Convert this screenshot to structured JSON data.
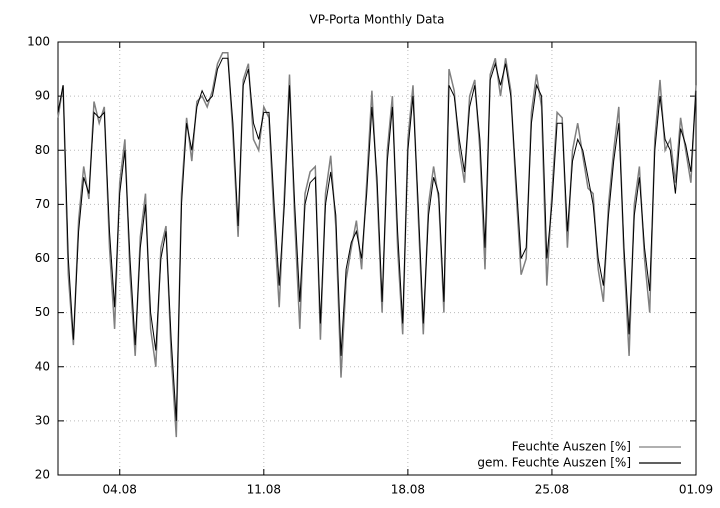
{
  "chart_data": {
    "type": "line",
    "title": "VP-Porta Monthly Data",
    "categories": [
      null,
      null,
      null,
      null,
      null,
      null,
      null,
      null,
      null,
      null,
      null,
      null,
      "04.08",
      null,
      null,
      null,
      null,
      null,
      null,
      null,
      null,
      null,
      null,
      null,
      null,
      null,
      null,
      null,
      null,
      null,
      null,
      null,
      null,
      null,
      null,
      null,
      null,
      null,
      null,
      null,
      "11.08",
      null,
      null,
      null,
      null,
      null,
      null,
      null,
      null,
      null,
      null,
      null,
      null,
      null,
      null,
      null,
      null,
      null,
      null,
      null,
      null,
      null,
      null,
      null,
      null,
      null,
      null,
      null,
      "18.08",
      null,
      null,
      null,
      null,
      null,
      null,
      null,
      null,
      null,
      null,
      null,
      null,
      null,
      null,
      null,
      null,
      null,
      null,
      null,
      null,
      null,
      null,
      null,
      null,
      null,
      null,
      null,
      "25.08",
      null,
      null,
      null,
      null,
      null,
      null,
      null,
      null,
      null,
      null,
      null,
      null,
      null,
      null,
      null,
      null,
      null,
      null,
      null,
      null,
      null,
      null,
      null,
      null,
      null,
      null,
      null,
      "01.09"
    ],
    "series": [
      {
        "name": "Feuchte Auszen [%]",
        "color": "#808080",
        "values": [
          86,
          92,
          57,
          44,
          67,
          77,
          71,
          89,
          85,
          88,
          62,
          47,
          74,
          82,
          57,
          42,
          64,
          72,
          47,
          40,
          62,
          66,
          42,
          27,
          72,
          86,
          78,
          89,
          90,
          88,
          91,
          96,
          98,
          98,
          83,
          64,
          93,
          96,
          82,
          80,
          88,
          86,
          67,
          51,
          72,
          94,
          67,
          47,
          72,
          76,
          77,
          45,
          72,
          79,
          66,
          38,
          56,
          62,
          67,
          58,
          74,
          91,
          73,
          50,
          80,
          90,
          62,
          46,
          82,
          92,
          68,
          46,
          70,
          77,
          71,
          50,
          95,
          91,
          80,
          74,
          90,
          93,
          80,
          58,
          94,
          97,
          90,
          97,
          91,
          73,
          57,
          60,
          87,
          94,
          88,
          55,
          72,
          87,
          86,
          62,
          80,
          85,
          79,
          73,
          72,
          58,
          52,
          70,
          80,
          88,
          60,
          42,
          70,
          77,
          60,
          50,
          82,
          93,
          80,
          82,
          74,
          86,
          80,
          74,
          92
        ]
      },
      {
        "name": "gem. Feuchte Auszen [%]",
        "color": "#000000",
        "values": [
          87,
          92,
          60,
          45,
          65,
          75,
          72,
          87,
          86,
          87,
          65,
          51,
          72,
          80,
          60,
          44,
          62,
          70,
          50,
          43,
          60,
          65,
          45,
          30,
          70,
          85,
          80,
          88,
          91,
          89,
          90,
          95,
          97,
          97,
          85,
          66,
          92,
          95,
          85,
          82,
          87,
          87,
          70,
          55,
          70,
          92,
          70,
          52,
          70,
          74,
          75,
          48,
          70,
          76,
          68,
          42,
          58,
          63,
          65,
          60,
          72,
          88,
          75,
          52,
          78,
          88,
          65,
          48,
          80,
          90,
          70,
          48,
          68,
          75,
          72,
          52,
          92,
          90,
          82,
          76,
          88,
          92,
          82,
          62,
          93,
          96,
          92,
          96,
          90,
          75,
          60,
          62,
          85,
          92,
          90,
          60,
          70,
          85,
          85,
          65,
          78,
          82,
          80,
          75,
          70,
          60,
          55,
          68,
          78,
          85,
          62,
          46,
          68,
          75,
          62,
          54,
          80,
          90,
          82,
          80,
          72,
          84,
          81,
          76,
          91
        ]
      }
    ],
    "ylim": [
      20,
      100
    ],
    "yticks": [
      20,
      30,
      40,
      50,
      60,
      70,
      80,
      90,
      100
    ],
    "grid": true,
    "legend": "bottom-right"
  }
}
